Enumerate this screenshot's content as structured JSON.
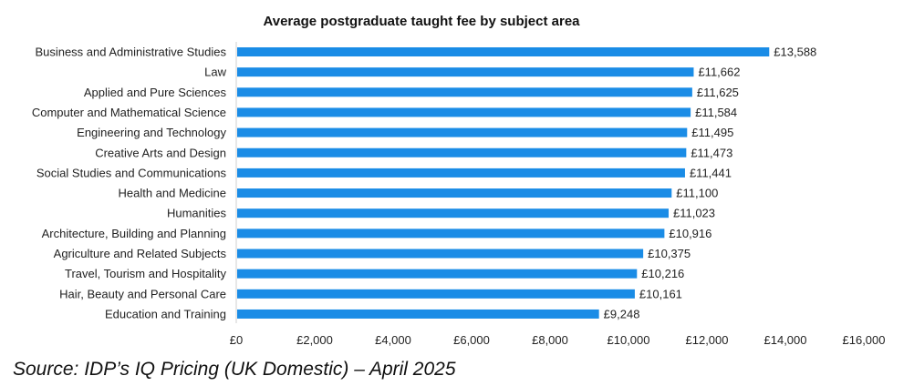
{
  "chart_data": {
    "type": "bar",
    "orientation": "horizontal",
    "title": "Average postgraduate taught fee by subject area",
    "categories": [
      "Business and Administrative Studies",
      "Law",
      "Applied and Pure Sciences",
      "Computer and Mathematical Science",
      "Engineering and Technology",
      "Creative Arts and Design",
      "Social Studies and Communications",
      "Health and Medicine",
      "Humanities",
      "Architecture, Building and Planning",
      "Agriculture and Related Subjects",
      "Travel, Tourism and Hospitality",
      "Hair, Beauty and Personal Care",
      "Education and Training"
    ],
    "values": [
      13588,
      11662,
      11625,
      11584,
      11495,
      11473,
      11441,
      11100,
      11023,
      10916,
      10375,
      10216,
      10161,
      9248
    ],
    "value_labels": [
      "£13,588",
      "£11,662",
      "£11,625",
      "£11,584",
      "£11,495",
      "£11,473",
      "£11,441",
      "£11,100",
      "£11,023",
      "£10,916",
      "£10,375",
      "£10,216",
      "£10,161",
      "£9,248"
    ],
    "xlim": [
      0,
      16000
    ],
    "xticks": [
      0,
      2000,
      4000,
      6000,
      8000,
      10000,
      12000,
      14000,
      16000
    ],
    "xtick_labels": [
      "£0",
      "£2,000",
      "£4,000",
      "£6,000",
      "£8,000",
      "£10,000",
      "£12,000",
      "£14,000",
      "£16,000"
    ],
    "bar_color": "#1a8ce6",
    "grid": false,
    "legend": "none"
  },
  "source_note": "Source: IDP’s IQ Pricing (UK Domestic) – April 2025"
}
